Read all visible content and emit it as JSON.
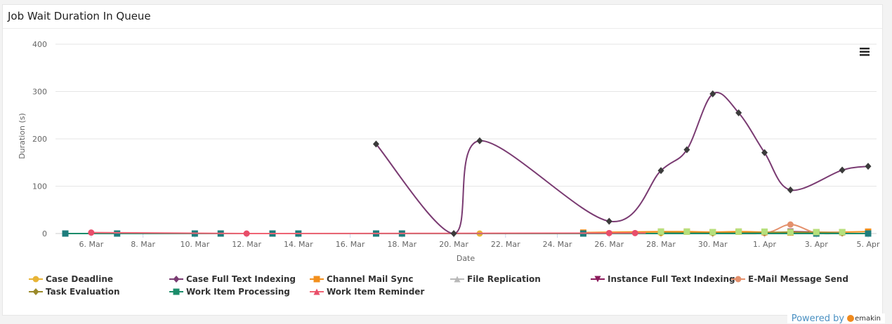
{
  "card": {
    "title": "Job Wait Duration In Queue"
  },
  "powered": {
    "label": "Powered by",
    "brand": "emakin"
  },
  "chart_data": {
    "type": "line",
    "title": "Job Wait Duration In Queue",
    "xlabel": "Date",
    "ylabel": "Duration (s)",
    "ylim": [
      0,
      400
    ],
    "yticks": [
      0,
      100,
      200,
      300,
      400
    ],
    "xlim": [
      "2024-03-05",
      "2024-04-05"
    ],
    "xticks": [
      "6. Mar",
      "8. Mar",
      "10. Mar",
      "12. Mar",
      "14. Mar",
      "16. Mar",
      "18. Mar",
      "20. Mar",
      "22. Mar",
      "24. Mar",
      "26. Mar",
      "28. Mar",
      "30. Mar",
      "1. Apr",
      "3. Apr",
      "5. Apr"
    ],
    "legend_position": "bottom",
    "series": [
      {
        "name": "Case Deadline",
        "color": "#e8b436",
        "marker": "circle",
        "points": [
          [
            "2024-03-21",
            0
          ],
          [
            "2024-03-28",
            1
          ],
          [
            "2024-04-01",
            1
          ],
          [
            "2024-04-03",
            2
          ]
        ]
      },
      {
        "name": "Case Full Text Indexing",
        "color": "#7a3b72",
        "marker": "diamond",
        "markerColor": "#3b3b3b",
        "points": [
          [
            "2024-03-17",
            189
          ],
          [
            "2024-03-20",
            0
          ],
          [
            "2024-03-21",
            196
          ],
          [
            "2024-03-26",
            26
          ],
          [
            "2024-03-28",
            133
          ],
          [
            "2024-03-29",
            177
          ],
          [
            "2024-03-30",
            295
          ],
          [
            "2024-03-31",
            255
          ],
          [
            "2024-04-01",
            171
          ],
          [
            "2024-04-02",
            92
          ],
          [
            "2024-04-04",
            134
          ],
          [
            "2024-04-05",
            142
          ]
        ]
      },
      {
        "name": "Channel Mail Sync",
        "color": "#f28f1c",
        "marker": "square",
        "points": [
          [
            "2024-03-25",
            2
          ],
          [
            "2024-03-28",
            4
          ],
          [
            "2024-03-29",
            4
          ],
          [
            "2024-03-30",
            3
          ],
          [
            "2024-03-31",
            4
          ],
          [
            "2024-04-01",
            3
          ],
          [
            "2024-04-02",
            2
          ],
          [
            "2024-04-03",
            3
          ],
          [
            "2024-04-04",
            3
          ],
          [
            "2024-04-05",
            4
          ]
        ]
      },
      {
        "name": "File Replication",
        "color": "#b8b8b8",
        "marker": "triangle",
        "points": [
          [
            "2024-04-02",
            3
          ],
          [
            "2024-04-04",
            2
          ]
        ]
      },
      {
        "name": "Instance Full Text Indexing",
        "color": "#8b1a5b",
        "marker": "triangle-down",
        "points": [
          [
            "2024-04-02",
            4
          ],
          [
            "2024-04-03",
            3
          ]
        ]
      },
      {
        "name": "E-Mail Message Send",
        "color": "#e4906c",
        "marker": "circle",
        "points": [
          [
            "2024-03-30",
            1
          ],
          [
            "2024-04-01",
            1
          ],
          [
            "2024-04-02",
            19
          ],
          [
            "2024-04-03",
            1
          ],
          [
            "2024-04-04",
            1
          ]
        ]
      },
      {
        "name": "Task Evaluation",
        "color": "#9b8a2a",
        "marker": "diamond",
        "points": [
          [
            "2024-03-28",
            2
          ],
          [
            "2024-03-30",
            1
          ],
          [
            "2024-04-01",
            2
          ],
          [
            "2024-04-02",
            3
          ],
          [
            "2024-04-04",
            1
          ]
        ]
      },
      {
        "name": "Work Item Processing",
        "color": "#1b8c6a",
        "marker": "square",
        "markerColor": "#1e7d7d",
        "points": [
          [
            "2024-03-05",
            0
          ],
          [
            "2024-03-07",
            0
          ],
          [
            "2024-03-10",
            0
          ],
          [
            "2024-03-11",
            0
          ],
          [
            "2024-03-13",
            0
          ],
          [
            "2024-03-14",
            0
          ],
          [
            "2024-03-17",
            0
          ],
          [
            "2024-03-18",
            0
          ],
          [
            "2024-03-25",
            0
          ],
          [
            "2024-04-03",
            0
          ],
          [
            "2024-04-05",
            0
          ]
        ]
      },
      {
        "name": "Work Item Reminder",
        "color": "#f06474",
        "marker": "triangle",
        "markerColor": "#e84e6a",
        "markerShape": "circle",
        "points": [
          [
            "2024-03-06",
            2
          ],
          [
            "2024-03-12",
            0
          ],
          [
            "2024-03-26",
            1
          ],
          [
            "2024-03-27",
            1
          ]
        ]
      }
    ],
    "extra_markers": [
      {
        "series": "File Replication",
        "color": "#b6e07c",
        "shape": "square",
        "points": [
          [
            "2024-03-28",
            4
          ],
          [
            "2024-03-29",
            4
          ],
          [
            "2024-03-30",
            3
          ],
          [
            "2024-03-31",
            4
          ],
          [
            "2024-04-01",
            4
          ],
          [
            "2024-04-02",
            3
          ],
          [
            "2024-04-03",
            3
          ],
          [
            "2024-04-04",
            3
          ]
        ]
      }
    ]
  }
}
